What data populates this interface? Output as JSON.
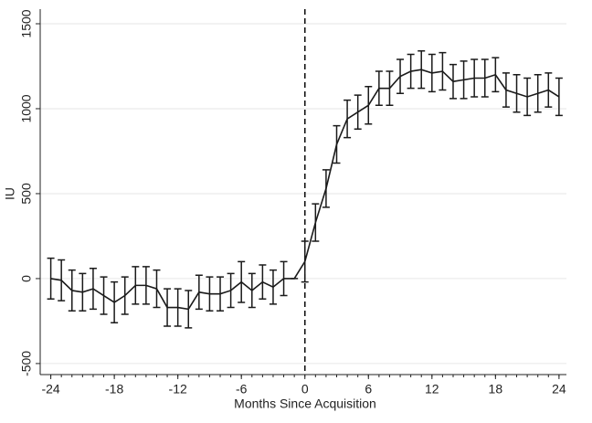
{
  "chart_data": {
    "type": "line",
    "x_label": "Months Since Acquisition",
    "y_label": "IU",
    "x": [
      -24,
      -23,
      -22,
      -21,
      -20,
      -19,
      -18,
      -17,
      -16,
      -15,
      -14,
      -13,
      -12,
      -11,
      -10,
      -9,
      -8,
      -7,
      -6,
      -5,
      -4,
      -3,
      -2,
      -1,
      0,
      1,
      2,
      3,
      4,
      5,
      6,
      7,
      8,
      9,
      10,
      11,
      12,
      13,
      14,
      15,
      16,
      17,
      18,
      19,
      20,
      21,
      22,
      23,
      24
    ],
    "values": [
      0,
      -10,
      -70,
      -80,
      -60,
      -100,
      -140,
      -100,
      -40,
      -40,
      -60,
      -170,
      -170,
      -180,
      -80,
      -90,
      -90,
      -70,
      -20,
      -70,
      -20,
      -50,
      0,
      0,
      100,
      330,
      530,
      790,
      940,
      980,
      1020,
      1120,
      1120,
      1190,
      1220,
      1230,
      1210,
      1220,
      1160,
      1170,
      1180,
      1180,
      1200,
      1110,
      1090,
      1070,
      1090,
      1110,
      1070
    ],
    "errors": [
      120,
      120,
      120,
      110,
      120,
      110,
      120,
      110,
      110,
      110,
      110,
      110,
      110,
      110,
      100,
      100,
      100,
      100,
      120,
      100,
      100,
      100,
      100,
      0,
      120,
      110,
      110,
      110,
      110,
      100,
      110,
      100,
      100,
      100,
      100,
      110,
      110,
      110,
      100,
      110,
      110,
      110,
      100,
      100,
      110,
      110,
      110,
      100,
      110
    ],
    "color": "#1a1a1a",
    "vline": 0,
    "xlim": [
      -25,
      24.7
    ],
    "ylim": [
      -565,
      1586
    ],
    "xticks": [
      -24,
      -18,
      -12,
      -6,
      0,
      6,
      12,
      18,
      24
    ],
    "yticks": [
      -500,
      0,
      500,
      1000,
      1500
    ],
    "grid": true
  }
}
